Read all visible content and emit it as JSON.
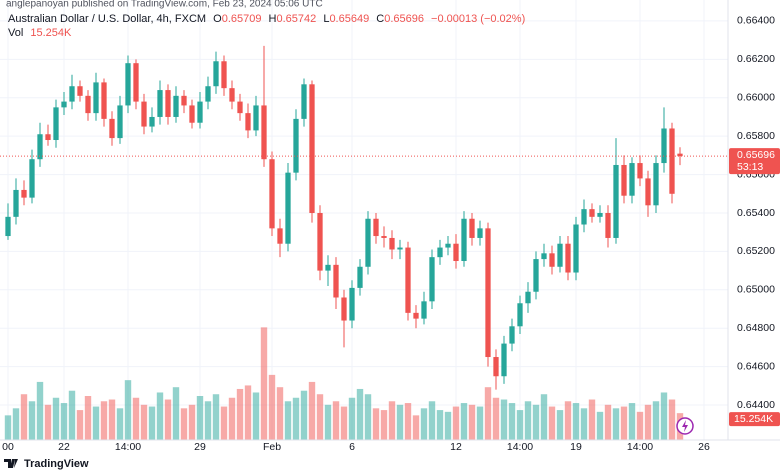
{
  "header": "anglepanoyan published on TradingView.com, Feb 23, 2024 05:06 UTC",
  "footer": "TradingView",
  "chart_data": {
    "type": "candlestick",
    "symbol": "Australian Dollar / U.S. Dollar, 4h, FXCM",
    "legend_labels": {
      "open": "O",
      "high": "H",
      "low": "L",
      "close": "C"
    },
    "change": "−0.00013 (−0.02%)",
    "volume_title": "Vol",
    "volume_label": "15.254K",
    "countdown": "53:13",
    "x": [
      0,
      1,
      2,
      3,
      4,
      5,
      6,
      7,
      8,
      9,
      10,
      11,
      12,
      13,
      14,
      15,
      16,
      17,
      18,
      19,
      20,
      21,
      22,
      23,
      24,
      25,
      26,
      27,
      28,
      29,
      30,
      31,
      32,
      33,
      34,
      35,
      36,
      37,
      38,
      39,
      40,
      41,
      42,
      43,
      44,
      45,
      46,
      47,
      48,
      49,
      50,
      51,
      52,
      53,
      54,
      55,
      56,
      57,
      58,
      59,
      60,
      61,
      62,
      63,
      64,
      65,
      66,
      67,
      68,
      69,
      70,
      71,
      72,
      73,
      74,
      75,
      76,
      77,
      78,
      79,
      80,
      81,
      82,
      83,
      84
    ],
    "xlim": [
      -1,
      90
    ],
    "xticks": [
      {
        "value": 0,
        "label": "00"
      },
      {
        "value": 7,
        "label": "22"
      },
      {
        "value": 15,
        "label": "14:00"
      },
      {
        "value": 24,
        "label": "29"
      },
      {
        "value": 33,
        "label": "Feb"
      },
      {
        "value": 43,
        "label": "6"
      },
      {
        "value": 56,
        "label": "12"
      },
      {
        "value": 64,
        "label": "14:00"
      },
      {
        "value": 71,
        "label": "19"
      },
      {
        "value": 79,
        "label": "14:00"
      },
      {
        "value": 87,
        "label": "26"
      }
    ],
    "open": [
      0.6528,
      0.6538,
      0.6552,
      0.6548,
      0.6568,
      0.6581,
      0.6578,
      0.6595,
      0.6598,
      0.6606,
      0.6601,
      0.6592,
      0.6608,
      0.6589,
      0.6579,
      0.6596,
      0.6618,
      0.6598,
      0.6585,
      0.659,
      0.6604,
      0.659,
      0.6601,
      0.6596,
      0.6587,
      0.6598,
      0.6606,
      0.6619,
      0.6605,
      0.6598,
      0.6592,
      0.6583,
      0.6596,
      0.6568,
      0.6532,
      0.6524,
      0.6561,
      0.6589,
      0.6607,
      0.654,
      0.651,
      0.6513,
      0.6496,
      0.6484,
      0.6501,
      0.6512,
      0.6537,
      0.6528,
      0.6527,
      0.6521,
      0.6522,
      0.6488,
      0.6485,
      0.6494,
      0.6517,
      0.6522,
      0.6524,
      0.6515,
      0.6537,
      0.6527,
      0.6532,
      0.6465,
      0.6455,
      0.6472,
      0.6481,
      0.6493,
      0.6499,
      0.6516,
      0.6519,
      0.6512,
      0.6524,
      0.6509,
      0.6534,
      0.6542,
      0.6538,
      0.654,
      0.6527,
      0.6565,
      0.6549,
      0.6566,
      0.6558,
      0.6544,
      0.6566,
      0.6584,
      0.65709
    ],
    "high": [
      0.6545,
      0.6558,
      0.6557,
      0.6573,
      0.6587,
      0.6586,
      0.6599,
      0.6603,
      0.6612,
      0.6609,
      0.6604,
      0.6613,
      0.661,
      0.6593,
      0.6601,
      0.6622,
      0.662,
      0.6602,
      0.6595,
      0.6609,
      0.6607,
      0.6606,
      0.6604,
      0.6599,
      0.6603,
      0.6611,
      0.6624,
      0.6622,
      0.6609,
      0.6602,
      0.6597,
      0.6601,
      0.6627,
      0.6572,
      0.6537,
      0.6566,
      0.6594,
      0.661,
      0.6609,
      0.6544,
      0.6518,
      0.6517,
      0.65,
      0.6505,
      0.6516,
      0.6541,
      0.654,
      0.6533,
      0.6531,
      0.6526,
      0.6525,
      0.6492,
      0.6499,
      0.6521,
      0.6526,
      0.6528,
      0.6529,
      0.6541,
      0.654,
      0.6536,
      0.6535,
      0.6469,
      0.6476,
      0.6485,
      0.6497,
      0.6504,
      0.652,
      0.6524,
      0.6523,
      0.6528,
      0.6528,
      0.6538,
      0.6547,
      0.6545,
      0.6544,
      0.6544,
      0.6579,
      0.657,
      0.6569,
      0.657,
      0.6562,
      0.657,
      0.6595,
      0.6587,
      0.65742
    ],
    "low": [
      0.6526,
      0.6534,
      0.6544,
      0.6545,
      0.6564,
      0.6575,
      0.6574,
      0.6591,
      0.6594,
      0.6598,
      0.6588,
      0.6588,
      0.6585,
      0.6575,
      0.6576,
      0.6592,
      0.6594,
      0.6581,
      0.6582,
      0.6586,
      0.6586,
      0.6587,
      0.6592,
      0.6584,
      0.6584,
      0.6594,
      0.6602,
      0.6601,
      0.6594,
      0.6588,
      0.6579,
      0.658,
      0.6564,
      0.6528,
      0.6517,
      0.652,
      0.6557,
      0.6585,
      0.6535,
      0.6505,
      0.6502,
      0.649,
      0.647,
      0.648,
      0.6497,
      0.6508,
      0.6524,
      0.6522,
      0.6516,
      0.6516,
      0.6484,
      0.648,
      0.6482,
      0.649,
      0.6513,
      0.6518,
      0.6511,
      0.6512,
      0.6523,
      0.6523,
      0.646,
      0.6448,
      0.6451,
      0.6468,
      0.6477,
      0.6488,
      0.6495,
      0.6512,
      0.6508,
      0.6509,
      0.6505,
      0.6505,
      0.653,
      0.6535,
      0.6535,
      0.6522,
      0.6524,
      0.6545,
      0.6545,
      0.6554,
      0.6538,
      0.654,
      0.6561,
      0.6545,
      0.65649
    ],
    "close": [
      0.6538,
      0.6552,
      0.6548,
      0.6568,
      0.6581,
      0.6578,
      0.6595,
      0.6598,
      0.6606,
      0.6601,
      0.6592,
      0.6608,
      0.6589,
      0.6579,
      0.6596,
      0.6618,
      0.6598,
      0.6585,
      0.659,
      0.6604,
      0.659,
      0.6601,
      0.6596,
      0.6587,
      0.6598,
      0.6606,
      0.6619,
      0.6605,
      0.6598,
      0.6592,
      0.6583,
      0.6596,
      0.6568,
      0.6532,
      0.6524,
      0.6561,
      0.6589,
      0.6607,
      0.654,
      0.651,
      0.6513,
      0.6496,
      0.6484,
      0.6501,
      0.6512,
      0.6537,
      0.6528,
      0.6527,
      0.6521,
      0.6522,
      0.6488,
      0.6485,
      0.6494,
      0.6517,
      0.6522,
      0.6524,
      0.6515,
      0.6537,
      0.6527,
      0.6532,
      0.6465,
      0.6455,
      0.6472,
      0.6481,
      0.6493,
      0.6499,
      0.6516,
      0.6519,
      0.6512,
      0.6524,
      0.6509,
      0.6534,
      0.6542,
      0.6538,
      0.654,
      0.6527,
      0.6565,
      0.6549,
      0.6566,
      0.6558,
      0.6544,
      0.6566,
      0.6584,
      0.655,
      0.65696
    ],
    "volume": [
      14,
      18,
      26,
      22,
      33,
      20,
      24,
      21,
      28,
      17,
      25,
      19,
      22,
      23,
      18,
      34,
      24,
      20,
      19,
      27,
      23,
      30,
      18,
      20,
      25,
      22,
      26,
      19,
      24,
      29,
      31,
      27,
      64,
      37,
      30,
      22,
      24,
      28,
      33,
      26,
      20,
      22,
      19,
      24,
      29,
      26,
      18,
      17,
      22,
      20,
      21,
      14,
      18,
      22,
      17,
      16,
      19,
      21,
      20,
      19,
      30,
      24,
      23,
      21,
      17,
      22,
      20,
      26,
      19,
      17,
      22,
      21,
      18,
      23,
      16,
      20,
      18,
      19,
      21,
      16,
      20,
      22,
      27,
      23,
      15.254
    ],
    "ylim": [
      0.64218,
      0.66509
    ],
    "yticks": [
      {
        "value": 0.644,
        "label": "0.64400"
      },
      {
        "value": 0.646,
        "label": "0.64600"
      },
      {
        "value": 0.648,
        "label": "0.64800"
      },
      {
        "value": 0.65,
        "label": "0.65000"
      },
      {
        "value": 0.652,
        "label": "0.65200"
      },
      {
        "value": 0.654,
        "label": "0.65400"
      },
      {
        "value": 0.656,
        "label": "0.65600"
      },
      {
        "value": 0.658,
        "label": "0.65800"
      },
      {
        "value": 0.66,
        "label": "0.66000"
      },
      {
        "value": 0.662,
        "label": "0.66200"
      },
      {
        "value": 0.664,
        "label": "0.66400"
      }
    ],
    "vol_lim": [
      0,
      250
    ],
    "up_color": "#26a69a",
    "down_color": "#ef5350",
    "grid": true
  }
}
